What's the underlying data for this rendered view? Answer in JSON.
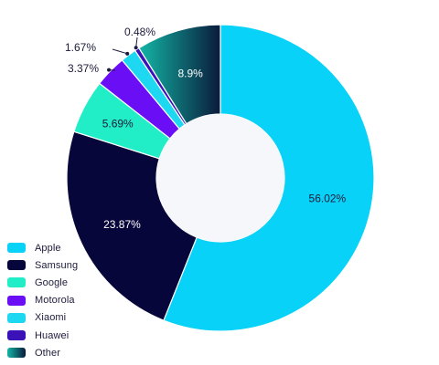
{
  "chart_data": {
    "type": "donut",
    "series": [
      {
        "name": "Apple",
        "value": 56.02,
        "label": "56.02%",
        "color": "#08d2f7",
        "label_color": "#1d1b3b"
      },
      {
        "name": "Samsung",
        "value": 23.87,
        "label": "23.87%",
        "color": "#06063a",
        "label_color": "#ffffff"
      },
      {
        "name": "Google",
        "value": 5.69,
        "label": "5.69%",
        "color": "#21eec7",
        "label_color": "#1d1b3b"
      },
      {
        "name": "Motorola",
        "value": 3.37,
        "label": "3.37%",
        "color": "#6a0ef5",
        "label_color": "#1d1b3b"
      },
      {
        "name": "Xiaomi",
        "value": 1.67,
        "label": "1.67%",
        "color": "#1ed8f2",
        "label_color": "#1d1b3b"
      },
      {
        "name": "Huawei",
        "value": 0.48,
        "label": "0.48%",
        "color": "#3a12b8",
        "label_color": "#1d1b3b"
      },
      {
        "name": "Other",
        "value": 8.9,
        "label": "8.9%",
        "color": "#13b6a6",
        "gradient_end": "#0a1a3a",
        "label_color": "#ffffff"
      }
    ],
    "legend_position": "bottom-left",
    "center_color": "#f5f7fb"
  }
}
